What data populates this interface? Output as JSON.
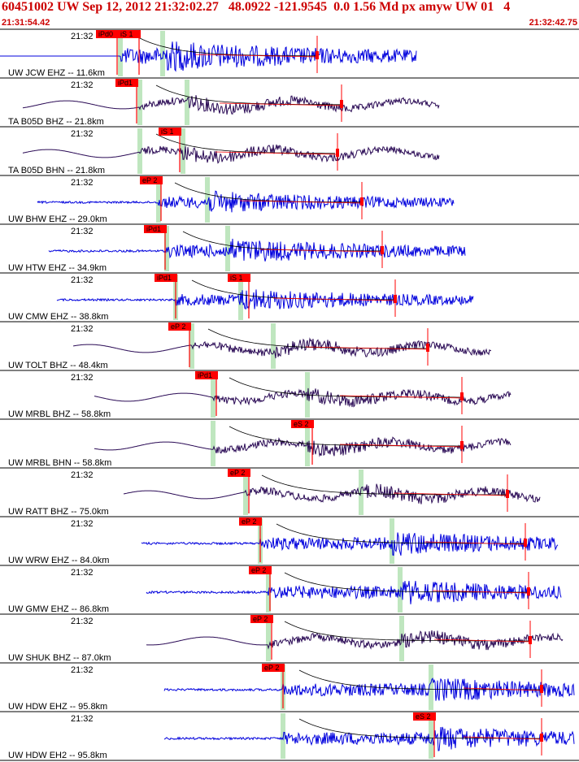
{
  "header": {
    "title": "60451002 UW Sep 12, 2012 21:32:02.27   48.0922 -121.9545  0.0 1.56 Md px amyw UW 01   4",
    "start_time": "21:31:54.42",
    "end_time": "21:32:42.75"
  },
  "colors": {
    "header": "#cc0000",
    "trace_blue": "#0000dd",
    "trace_purple": "#2a0a55",
    "pick_red": "#ff0000",
    "window_green": "#bfe6bf",
    "coda_black": "#000000"
  },
  "traces": [
    {
      "label": "UW JCW EHZ -- 11.6km",
      "time": "21:32",
      "color": "blue",
      "picks": [
        "iPd0",
        "iS 1"
      ],
      "amp": 0.7
    },
    {
      "label": "TA B05D BHZ -- 21.8km",
      "time": "21:32",
      "color": "purple",
      "picks": [
        "iPd1"
      ],
      "amp": 0.55
    },
    {
      "label": "TA B05D BHN -- 21.8km",
      "time": "21:32",
      "color": "purple",
      "picks": [
        "iS 1"
      ],
      "amp": 0.55
    },
    {
      "label": "UW BHW EHZ -- 29.0km",
      "time": "21:32",
      "color": "blue",
      "picks": [
        "eP 2"
      ],
      "amp": 0.5
    },
    {
      "label": "UW HTW EHZ -- 34.9km",
      "time": "21:32",
      "color": "blue",
      "picks": [
        "iPd1"
      ],
      "amp": 0.55
    },
    {
      "label": "UW CMW EHZ -- 38.8km",
      "time": "21:32",
      "color": "blue",
      "picks": [
        "iPd1",
        "iS 1"
      ],
      "amp": 0.5
    },
    {
      "label": "UW TOLT BHZ -- 48.4km",
      "time": "21:32",
      "color": "purple",
      "picks": [
        "eP 2"
      ],
      "amp": 0.55
    },
    {
      "label": "UW MRBL BHZ -- 58.8km",
      "time": "21:32",
      "color": "purple",
      "picks": [
        "iPd1"
      ],
      "amp": 0.55
    },
    {
      "label": "UW MRBL BHN -- 58.8km",
      "time": "",
      "color": "purple",
      "picks": [
        "eS 2"
      ],
      "amp": 0.55
    },
    {
      "label": "UW RATT BHZ -- 75.0km",
      "time": "21:32",
      "color": "purple",
      "picks": [
        "eP 2"
      ],
      "amp": 0.55
    },
    {
      "label": "UW WRW EHZ -- 84.0km",
      "time": "21:32",
      "color": "blue",
      "picks": [
        "eP 2"
      ],
      "amp": 0.55
    },
    {
      "label": "UW GMW EHZ -- 86.8km",
      "time": "21:32",
      "color": "blue",
      "picks": [
        "eP 2"
      ],
      "amp": 0.55
    },
    {
      "label": "UW SHUK BHZ -- 87.0km",
      "time": "21:32",
      "color": "purple",
      "picks": [
        "eP 2"
      ],
      "amp": 0.55
    },
    {
      "label": "UW HDW EHZ -- 95.8km",
      "time": "21:32",
      "color": "blue",
      "picks": [
        "eP 2"
      ],
      "amp": 0.55
    },
    {
      "label": "UW HDW EH2 -- 95.8km",
      "time": "21:32",
      "color": "blue",
      "picks": [
        "eS 2"
      ],
      "amp": 0.55
    }
  ]
}
